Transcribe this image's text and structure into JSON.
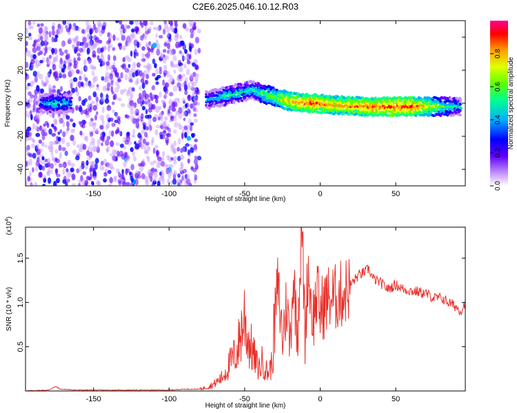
{
  "title": "C2E6.2025.046.10.12.R03",
  "chart_data": [
    {
      "type": "heatmap",
      "xlabel": "Height of straight line (km)",
      "ylabel": "Frequency (Hz)",
      "xlim": [
        -195,
        96
      ],
      "ylim": [
        -50,
        50
      ],
      "xticks": [
        -150,
        -100,
        -50,
        0,
        50
      ],
      "yticks": [
        -40,
        -20,
        0,
        20,
        40
      ],
      "colorbar": {
        "label": "Normalized spectral amplitude",
        "range": [
          0,
          1
        ],
        "ticks": [
          "0.0",
          "0.2",
          "0.4",
          "0.6",
          "0.8"
        ],
        "ticks_values": [
          0.0,
          0.2,
          0.4,
          0.6,
          0.8
        ],
        "colormap": [
          "#ffffff",
          "#8000ff",
          "#0000ff",
          "#00c0ff",
          "#00ff80",
          "#c0ff00",
          "#ffa000",
          "#ff0000",
          "#ff0080"
        ]
      },
      "description_points": {
        "noise_region_km": [
          -195,
          -80
        ],
        "dense_core": [
          {
            "x": -185,
            "y": 0,
            "a": 0.3
          },
          {
            "x": -175,
            "y": 0,
            "a": 0.45
          },
          {
            "x": -165,
            "y": 0,
            "a": 0.35
          },
          {
            "x": -75,
            "y": 2,
            "a": 0.3
          },
          {
            "x": -60,
            "y": 5,
            "a": 0.45
          },
          {
            "x": -45,
            "y": 8,
            "a": 0.4
          },
          {
            "x": -35,
            "y": 5,
            "a": 0.55
          },
          {
            "x": -20,
            "y": 1,
            "a": 0.75
          },
          {
            "x": -5,
            "y": 0,
            "a": 0.85
          },
          {
            "x": 10,
            "y": -1,
            "a": 0.75
          },
          {
            "x": 30,
            "y": -2,
            "a": 0.8
          },
          {
            "x": 60,
            "y": -2,
            "a": 0.85
          },
          {
            "x": 80,
            "y": -2,
            "a": 0.55
          },
          {
            "x": 93,
            "y": -2,
            "a": 0.35
          }
        ]
      }
    },
    {
      "type": "line",
      "xlabel": "Height of straight line (km)",
      "ylabel": "SNR (10 * v/v)",
      "multiplier": "(x10",
      "multiplier_exp": "4",
      "multiplier_close": ")",
      "xlim": [
        -195,
        96
      ],
      "ylim": [
        0,
        1.85
      ],
      "xticks": [
        -150,
        -100,
        -50,
        0,
        50
      ],
      "yticks": [
        "0.5",
        "1.0",
        "1.5"
      ],
      "ytick_values": [
        0.5,
        1.0,
        1.5
      ],
      "series": [
        {
          "color": "#e8302a",
          "x": [
            -195,
            -180,
            -175,
            -172,
            -160,
            -140,
            -120,
            -100,
            -90,
            -80,
            -75,
            -70,
            -65,
            -60,
            -55,
            -52,
            -50,
            -48,
            -45,
            -42,
            -40,
            -38,
            -35,
            -32,
            -30,
            -28,
            -25,
            -22,
            -20,
            -18,
            -15,
            -13,
            -12,
            -10,
            -8,
            -5,
            -2,
            0,
            5,
            10,
            15,
            20,
            25,
            30,
            32,
            35,
            40,
            45,
            50,
            55,
            60,
            65,
            70,
            75,
            80,
            85,
            90,
            93,
            96
          ],
          "y": [
            0.0,
            0.01,
            0.05,
            0.02,
            0.01,
            0.01,
            0.01,
            0.01,
            0.02,
            0.02,
            0.04,
            0.08,
            0.15,
            0.3,
            0.45,
            0.7,
            0.85,
            0.6,
            0.45,
            0.3,
            0.25,
            0.35,
            0.2,
            0.3,
            0.8,
            1.2,
            0.6,
            1.0,
            0.5,
            1.3,
            0.7,
            1.5,
            1.85,
            0.6,
            1.4,
            0.8,
            1.1,
            0.9,
            1.05,
            1.05,
            1.1,
            1.2,
            1.3,
            1.35,
            1.38,
            1.27,
            1.22,
            1.15,
            1.2,
            1.15,
            1.13,
            1.12,
            1.1,
            1.05,
            1.05,
            1.0,
            0.95,
            0.9,
            1.0
          ]
        }
      ]
    }
  ]
}
